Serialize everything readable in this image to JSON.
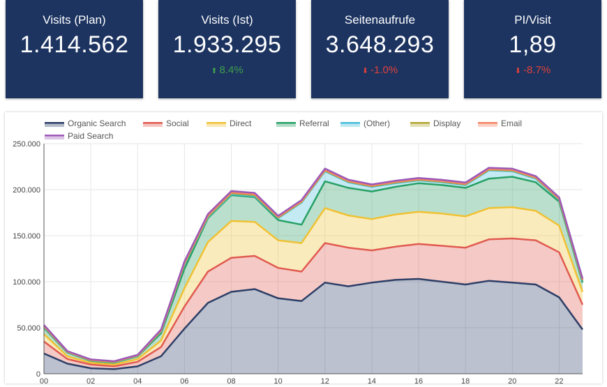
{
  "kpis": [
    {
      "title": "Visits (Plan)",
      "value": "1.414.562",
      "change": "",
      "direction": ""
    },
    {
      "title": "Visits (Ist)",
      "value": "1.933.295",
      "change": "8.4%",
      "direction": "up"
    },
    {
      "title": "Seitenaufrufe",
      "value": "3.648.293",
      "change": "-1.0%",
      "direction": "down"
    },
    {
      "title": "PI/Visit",
      "value": "1,89",
      "change": "-8.7%",
      "direction": "down"
    }
  ],
  "colors": {
    "kpi_background": "#1d3461",
    "positive": "#3f9f4a",
    "negative": "#e0413a"
  },
  "chart_data": {
    "type": "area",
    "stacked": true,
    "x": [
      "00",
      "01",
      "02",
      "03",
      "04",
      "05",
      "06",
      "07",
      "08",
      "09",
      "10",
      "11",
      "12",
      "13",
      "14",
      "15",
      "16",
      "17",
      "18",
      "19",
      "20",
      "21",
      "22",
      "23"
    ],
    "x_tick_labels": [
      "00",
      "02",
      "04",
      "06",
      "08",
      "10",
      "12",
      "14",
      "16",
      "18",
      "20",
      "22"
    ],
    "y_ticks": [
      "0",
      "50.000",
      "100.000",
      "150.000",
      "200.000",
      "250.000"
    ],
    "ylim": [
      0,
      250000
    ],
    "grid": true,
    "legend_position": "top-left",
    "series": [
      {
        "name": "Organic Search",
        "color": "#2c3e67",
        "values": [
          22000,
          11000,
          6000,
          5000,
          8000,
          19000,
          49000,
          77000,
          89000,
          92000,
          82000,
          79000,
          99000,
          95000,
          99000,
          102000,
          103000,
          100000,
          97000,
          101000,
          99000,
          97000,
          83000,
          48000
        ]
      },
      {
        "name": "Social",
        "color": "#e05a4f",
        "values": [
          13000,
          5000,
          4000,
          3000,
          5000,
          10000,
          24000,
          34000,
          37000,
          36000,
          33000,
          32000,
          43000,
          42000,
          35000,
          36000,
          38000,
          39000,
          40000,
          45000,
          48000,
          48000,
          49000,
          27000
        ]
      },
      {
        "name": "Direct",
        "color": "#f0c132",
        "values": [
          8000,
          3000,
          2000,
          2000,
          3000,
          7000,
          20000,
          32000,
          40000,
          37000,
          30000,
          31000,
          38000,
          35000,
          34000,
          35000,
          35000,
          35000,
          34000,
          34000,
          34000,
          32000,
          29000,
          14000
        ]
      },
      {
        "name": "Referral",
        "color": "#27a065",
        "values": [
          7000,
          4000,
          2000,
          2000,
          3000,
          8000,
          21000,
          26000,
          28000,
          27000,
          22000,
          20000,
          29000,
          30000,
          30000,
          30000,
          31000,
          31000,
          31000,
          32000,
          33000,
          31000,
          26000,
          10000
        ]
      },
      {
        "name": "(Other)",
        "color": "#46bddb",
        "values": [
          1000,
          500,
          500,
          500,
          500,
          2000,
          5000,
          1000,
          1000,
          1000,
          2000,
          24000,
          11000,
          6000,
          5000,
          4000,
          3000,
          3000,
          3000,
          9000,
          6000,
          4000,
          2000,
          2000
        ]
      },
      {
        "name": "Display",
        "color": "#b3a534",
        "values": [
          500,
          300,
          300,
          300,
          300,
          500,
          800,
          1000,
          1000,
          1000,
          700,
          700,
          700,
          700,
          700,
          700,
          700,
          700,
          700,
          700,
          700,
          700,
          700,
          600
        ]
      },
      {
        "name": "Email",
        "color": "#f38564",
        "values": [
          500,
          300,
          300,
          300,
          300,
          500,
          800,
          1000,
          1000,
          1000,
          700,
          700,
          700,
          700,
          700,
          700,
          700,
          700,
          700,
          700,
          700,
          700,
          700,
          600
        ]
      },
      {
        "name": "Paid Search",
        "color": "#9b59b6",
        "values": [
          1000,
          500,
          500,
          500,
          500,
          1000,
          1500,
          1500,
          1500,
          1500,
          1200,
          1300,
          1500,
          1400,
          1300,
          1300,
          1300,
          1300,
          1300,
          1400,
          1400,
          1300,
          1300,
          1200
        ]
      }
    ]
  }
}
